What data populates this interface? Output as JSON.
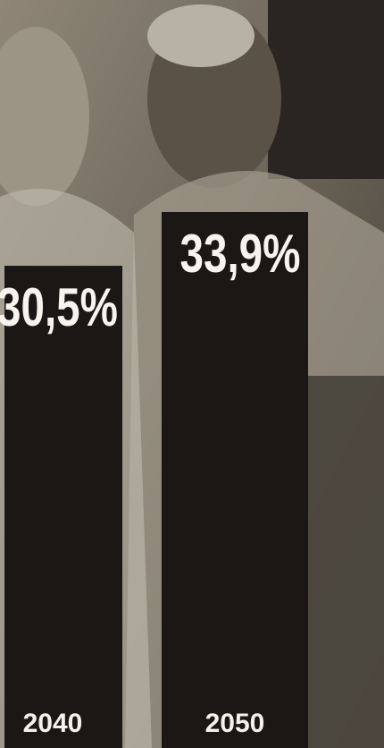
{
  "chart_data": {
    "type": "bar",
    "categories": [
      "2040",
      "2050"
    ],
    "values": [
      30.5,
      33.9
    ],
    "value_labels": [
      "30,5%",
      "33,9%"
    ],
    "color": "#1b1714"
  }
}
